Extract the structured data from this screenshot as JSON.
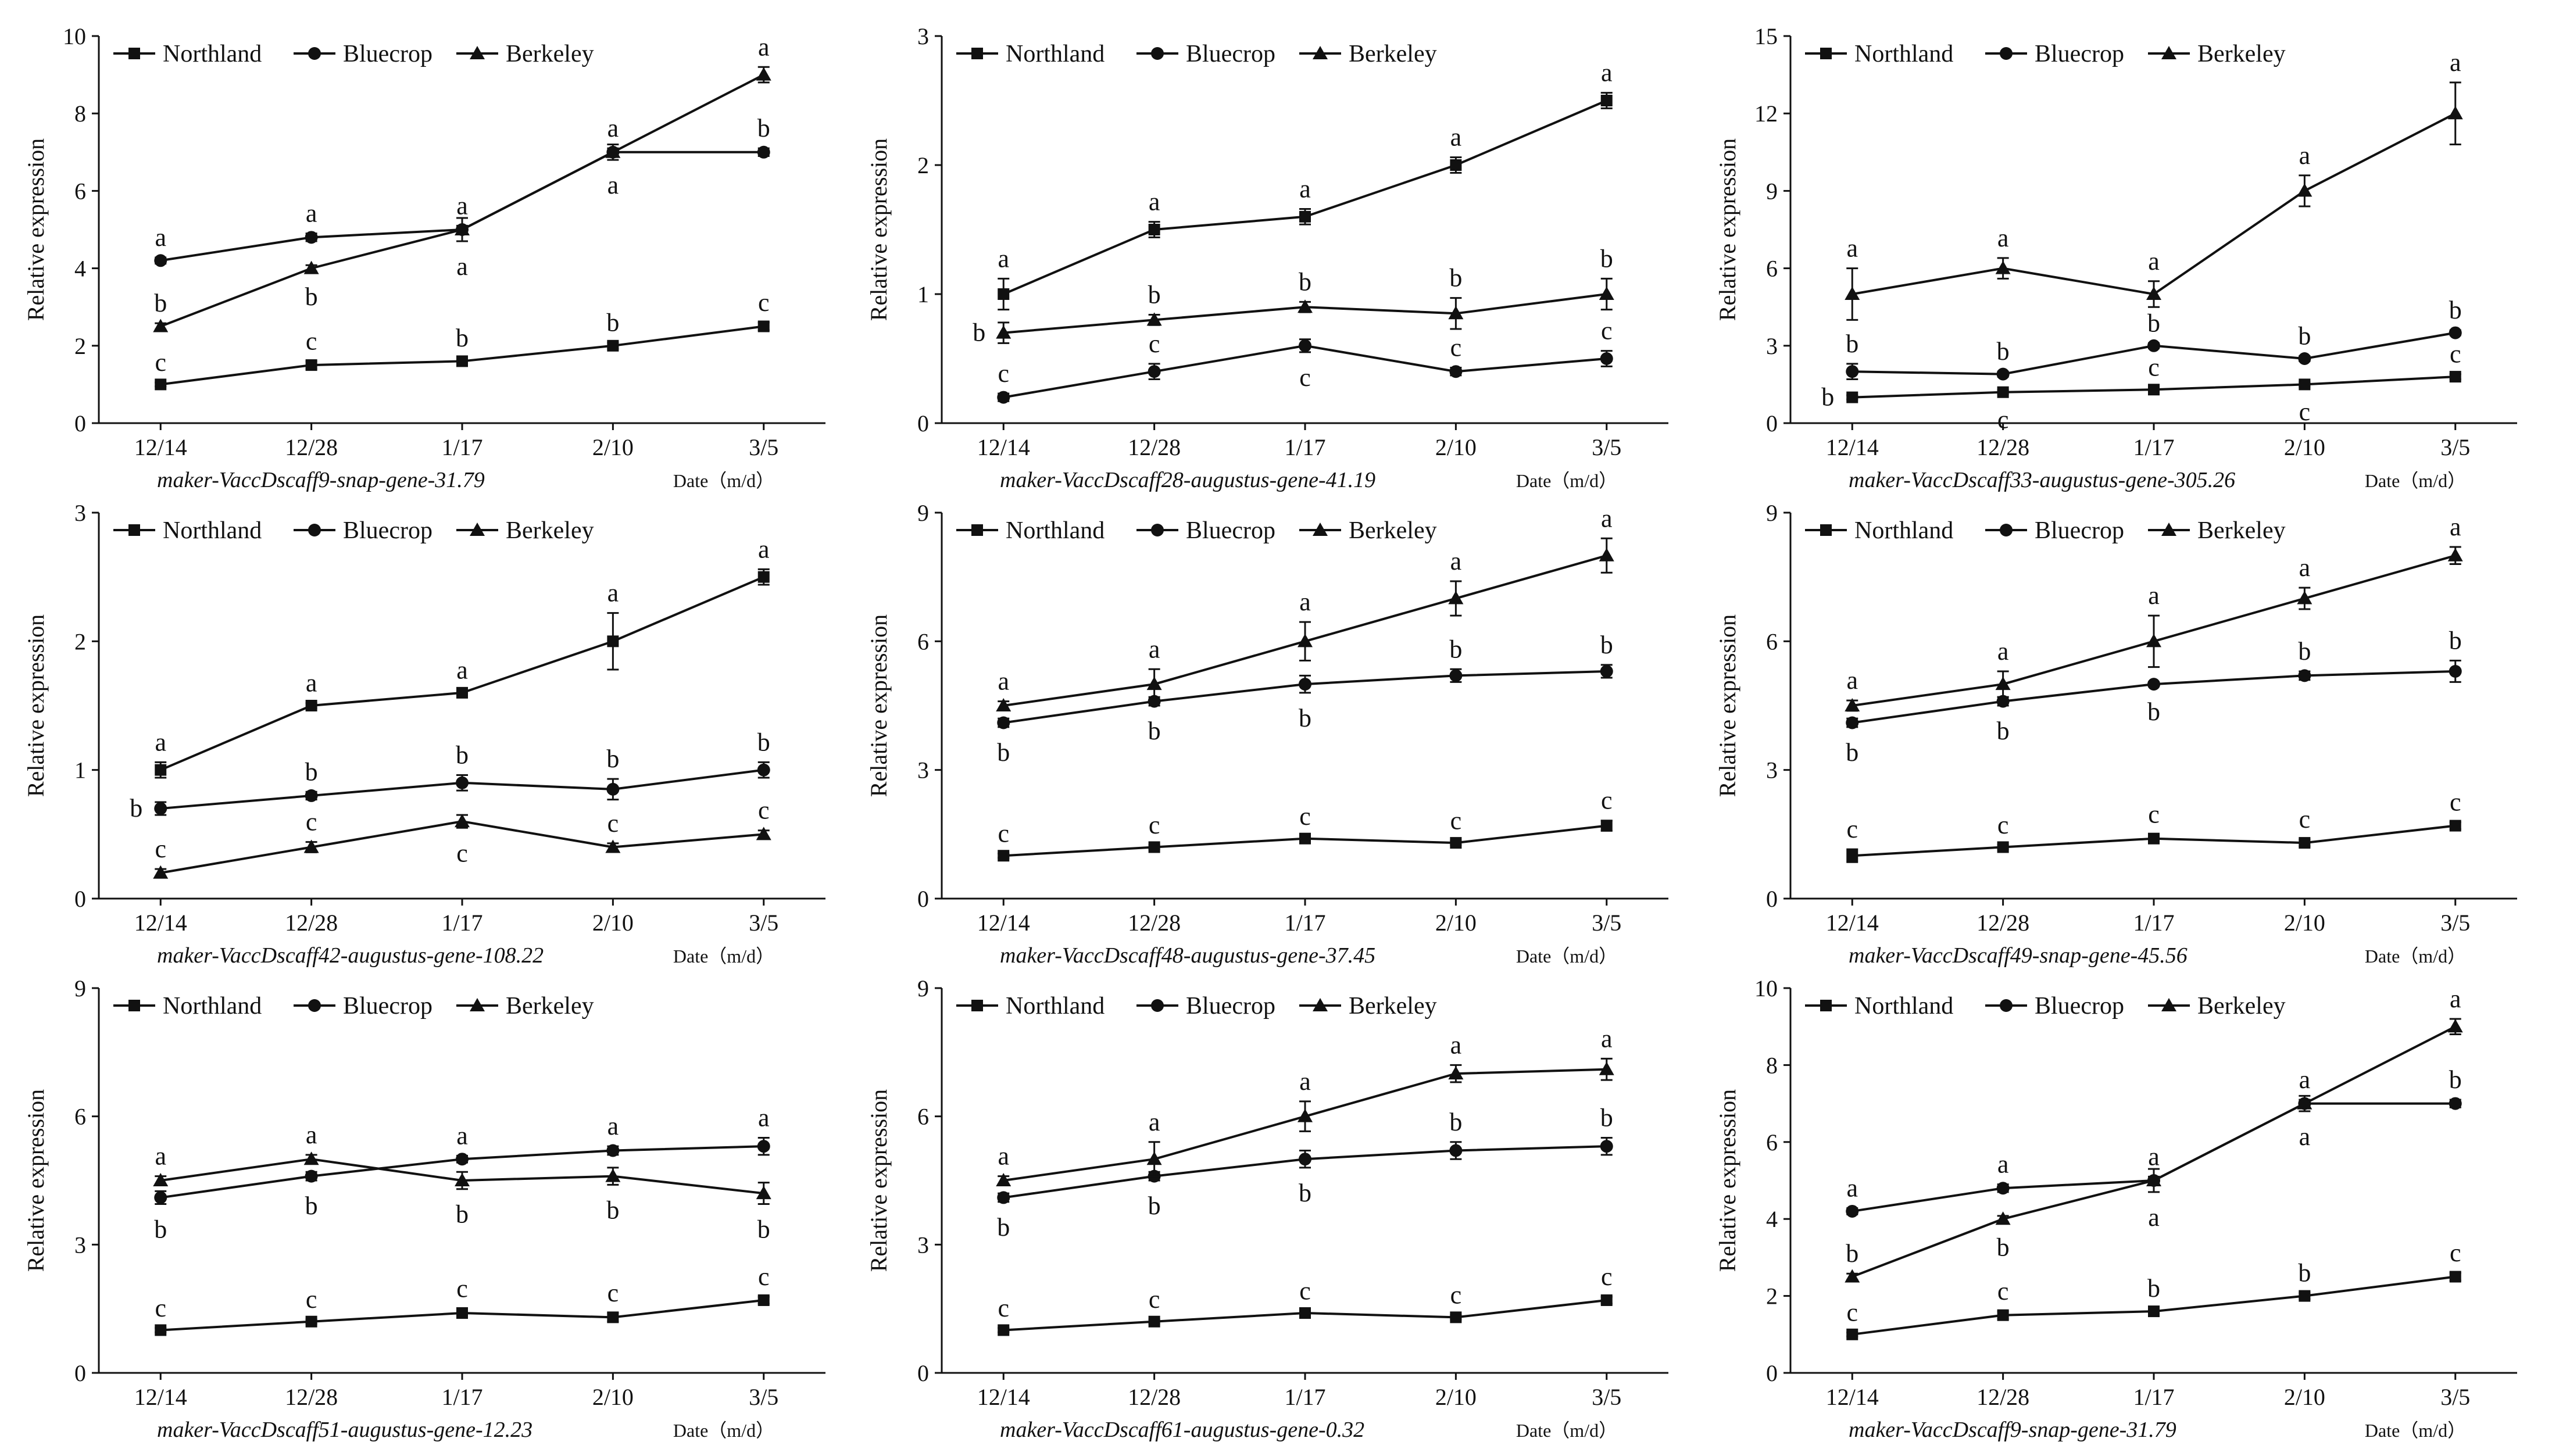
{
  "shared": {
    "categories": [
      "12/14",
      "12/28",
      "1/17",
      "2/10",
      "3/5"
    ],
    "ylabel": "Relative expression",
    "xlabel": "Date（m/d）",
    "legend": [
      "Northland",
      "Bluecrop",
      "Berkeley"
    ],
    "markers": {
      "Northland": "square",
      "Bluecrop": "circle",
      "Berkeley": "triangle"
    }
  },
  "chart_data": [
    {
      "type": "line",
      "title": "maker-VaccDscaff9-snap-gene-31.79",
      "ylim": [
        0,
        10
      ],
      "yticks": [
        0,
        2,
        4,
        6,
        8,
        10
      ],
      "series": [
        {
          "name": "Northland",
          "values": [
            1.0,
            1.5,
            1.6,
            2.0,
            2.5
          ],
          "err": [
            0.05,
            0.1,
            0.08,
            0.08,
            0.1
          ],
          "sig": [
            "c",
            "c",
            "b",
            "b",
            "c"
          ],
          "sigpos": [
            "above",
            "above",
            "above",
            "above",
            "above"
          ]
        },
        {
          "name": "Bluecrop",
          "values": [
            4.2,
            4.8,
            5.0,
            7.0,
            7.0
          ],
          "err": [
            0.08,
            0.1,
            0.1,
            0.1,
            0.1
          ],
          "sig": [
            "a",
            "a",
            "a",
            "a",
            "b"
          ],
          "sigpos": [
            "above",
            "above",
            "above",
            "above",
            "above"
          ]
        },
        {
          "name": "Berkeley",
          "values": [
            2.5,
            4.0,
            5.0,
            7.0,
            9.0
          ],
          "err": [
            0.08,
            0.08,
            0.3,
            0.2,
            0.2
          ],
          "sig": [
            "b",
            "b",
            "a",
            "a",
            "a"
          ],
          "sigpos": [
            "above",
            "below",
            "below",
            "below",
            "above"
          ]
        }
      ]
    },
    {
      "type": "line",
      "title": "maker-VaccDscaff28-augustus-gene-41.19",
      "ylim": [
        0,
        3
      ],
      "yticks": [
        0,
        1,
        2,
        3
      ],
      "series": [
        {
          "name": "Northland",
          "values": [
            1.0,
            1.5,
            1.6,
            2.0,
            2.5
          ],
          "err": [
            0.12,
            0.06,
            0.06,
            0.06,
            0.06
          ],
          "sig": [
            "a",
            "a",
            "a",
            "a",
            "a"
          ],
          "sigpos": [
            "above",
            "above",
            "above",
            "above",
            "above"
          ]
        },
        {
          "name": "Bluecrop",
          "values": [
            0.2,
            0.4,
            0.6,
            0.4,
            0.5
          ],
          "err": [
            0.03,
            0.06,
            0.05,
            0.03,
            0.06
          ],
          "sig": [
            "c",
            "c",
            "c",
            "c",
            "c"
          ],
          "sigpos": [
            "above",
            "above",
            "below",
            "above",
            "above"
          ]
        },
        {
          "name": "Berkeley",
          "values": [
            0.7,
            0.8,
            0.9,
            0.85,
            1.0
          ],
          "err": [
            0.08,
            0.04,
            0.04,
            0.12,
            0.12
          ],
          "sig": [
            "b",
            "b",
            "b",
            "b",
            "b"
          ],
          "sigpos": [
            "left",
            "above",
            "above",
            "above",
            "above"
          ]
        }
      ]
    },
    {
      "type": "line",
      "title": "maker-VaccDscaff33-augustus-gene-305.26",
      "ylim": [
        0,
        15
      ],
      "yticks": [
        0,
        3,
        6,
        9,
        12,
        15
      ],
      "series": [
        {
          "name": "Northland",
          "values": [
            1.0,
            1.2,
            1.3,
            1.5,
            1.8
          ],
          "err": [
            0.08,
            0.08,
            0.08,
            0.08,
            0.1
          ],
          "sig": [
            "b",
            "c",
            "c",
            "c",
            "c"
          ],
          "sigpos": [
            "left",
            "below",
            "above",
            "below",
            "above"
          ]
        },
        {
          "name": "Bluecrop",
          "values": [
            2.0,
            1.9,
            3.0,
            2.5,
            3.5
          ],
          "err": [
            0.3,
            0.1,
            0.1,
            0.1,
            0.1
          ],
          "sig": [
            "b",
            "b",
            "b",
            "b",
            "b"
          ],
          "sigpos": [
            "above",
            "above",
            "above",
            "above",
            "above"
          ]
        },
        {
          "name": "Berkeley",
          "values": [
            5.0,
            6.0,
            5.0,
            9.0,
            12.0
          ],
          "err": [
            1.0,
            0.4,
            0.5,
            0.6,
            1.2
          ],
          "sig": [
            "a",
            "a",
            "a",
            "a",
            "a"
          ],
          "sigpos": [
            "above",
            "above",
            "above",
            "above",
            "above"
          ]
        }
      ]
    },
    {
      "type": "line",
      "title": "maker-VaccDscaff42-augustus-gene-108.22",
      "ylim": [
        0,
        3
      ],
      "yticks": [
        0,
        1,
        2,
        3
      ],
      "series": [
        {
          "name": "Northland",
          "values": [
            1.0,
            1.5,
            1.6,
            2.0,
            2.5
          ],
          "err": [
            0.06,
            0.02,
            0.02,
            0.22,
            0.06
          ],
          "sig": [
            "a",
            "a",
            "a",
            "a",
            "a"
          ],
          "sigpos": [
            "above",
            "above",
            "above",
            "above",
            "above"
          ]
        },
        {
          "name": "Bluecrop",
          "values": [
            0.7,
            0.8,
            0.9,
            0.85,
            1.0
          ],
          "err": [
            0.05,
            0.03,
            0.06,
            0.08,
            0.06
          ],
          "sig": [
            "b",
            "b",
            "b",
            "b",
            "b"
          ],
          "sigpos": [
            "left",
            "above",
            "above",
            "above",
            "above"
          ]
        },
        {
          "name": "Berkeley",
          "values": [
            0.2,
            0.4,
            0.6,
            0.4,
            0.5
          ],
          "err": [
            0.03,
            0.04,
            0.05,
            0.03,
            0.03
          ],
          "sig": [
            "c",
            "c",
            "c",
            "c",
            "c"
          ],
          "sigpos": [
            "above",
            "above",
            "below",
            "above",
            "above"
          ]
        }
      ]
    },
    {
      "type": "line",
      "title": "maker-VaccDscaff48-augustus-gene-37.45",
      "ylim": [
        0,
        9
      ],
      "yticks": [
        0,
        3,
        6,
        9
      ],
      "series": [
        {
          "name": "Northland",
          "values": [
            1.0,
            1.2,
            1.4,
            1.3,
            1.7
          ],
          "err": [
            0.05,
            0.05,
            0.05,
            0.05,
            0.12
          ],
          "sig": [
            "c",
            "c",
            "c",
            "c",
            "c"
          ],
          "sigpos": [
            "above",
            "above",
            "above",
            "above",
            "above"
          ]
        },
        {
          "name": "Bluecrop",
          "values": [
            4.1,
            4.6,
            5.0,
            5.2,
            5.3
          ],
          "err": [
            0.1,
            0.1,
            0.2,
            0.15,
            0.15
          ],
          "sig": [
            "b",
            "b",
            "b",
            "b",
            "b"
          ],
          "sigpos": [
            "below",
            "below",
            "below",
            "above",
            "above"
          ]
        },
        {
          "name": "Berkeley",
          "values": [
            4.5,
            5.0,
            6.0,
            7.0,
            8.0
          ],
          "err": [
            0.1,
            0.35,
            0.45,
            0.4,
            0.4
          ],
          "sig": [
            "a",
            "a",
            "a",
            "a",
            "a"
          ],
          "sigpos": [
            "above",
            "above",
            "above",
            "above",
            "above"
          ]
        }
      ]
    },
    {
      "type": "line",
      "title": "maker-VaccDscaff49-snap-gene-45.56",
      "ylim": [
        0,
        9
      ],
      "yticks": [
        0,
        3,
        6,
        9
      ],
      "series": [
        {
          "name": "Northland",
          "values": [
            1.0,
            1.2,
            1.4,
            1.3,
            1.7
          ],
          "err": [
            0.15,
            0.05,
            0.1,
            0.08,
            0.08
          ],
          "sig": [
            "c",
            "c",
            "c",
            "c",
            "c"
          ],
          "sigpos": [
            "above",
            "above",
            "above",
            "above",
            "above"
          ]
        },
        {
          "name": "Bluecrop",
          "values": [
            4.1,
            4.6,
            5.0,
            5.2,
            5.3
          ],
          "err": [
            0.1,
            0.1,
            0.05,
            0.1,
            0.25
          ],
          "sig": [
            "b",
            "b",
            "b",
            "b",
            "b"
          ],
          "sigpos": [
            "below",
            "below",
            "below",
            "above",
            "above"
          ]
        },
        {
          "name": "Berkeley",
          "values": [
            4.5,
            5.0,
            6.0,
            7.0,
            8.0
          ],
          "err": [
            0.12,
            0.3,
            0.6,
            0.25,
            0.2
          ],
          "sig": [
            "a",
            "a",
            "a",
            "a",
            "a"
          ],
          "sigpos": [
            "above",
            "above",
            "above",
            "above",
            "above"
          ]
        }
      ]
    },
    {
      "type": "line",
      "title": "maker-VaccDscaff51-augustus-gene-12.23",
      "ylim": [
        0,
        9
      ],
      "yticks": [
        0,
        3,
        6,
        9
      ],
      "series": [
        {
          "name": "Northland",
          "values": [
            1.0,
            1.2,
            1.4,
            1.3,
            1.7
          ],
          "err": [
            0.05,
            0.05,
            0.1,
            0.1,
            0.08
          ],
          "sig": [
            "c",
            "c",
            "c",
            "c",
            "c"
          ],
          "sigpos": [
            "above",
            "above",
            "above",
            "above",
            "above"
          ]
        },
        {
          "name": "Bluecrop",
          "values": [
            4.1,
            4.6,
            5.0,
            5.2,
            5.3
          ],
          "err": [
            0.15,
            0.1,
            0.08,
            0.1,
            0.2
          ],
          "sig": [
            "b",
            "b",
            "a",
            "a",
            "a"
          ],
          "sigpos": [
            "below",
            "below",
            "above",
            "above",
            "above"
          ]
        },
        {
          "name": "Berkeley",
          "values": [
            4.5,
            5.0,
            4.5,
            4.6,
            4.2
          ],
          "err": [
            0.1,
            0.1,
            0.2,
            0.2,
            0.25
          ],
          "sig": [
            "a",
            "a",
            "b",
            "b",
            "b"
          ],
          "sigpos": [
            "above",
            "above",
            "below",
            "below",
            "below"
          ]
        }
      ]
    },
    {
      "type": "line",
      "title": "maker-VaccDscaff61-augustus-gene-0.32",
      "ylim": [
        0,
        9
      ],
      "yticks": [
        0,
        3,
        6,
        9
      ],
      "series": [
        {
          "name": "Northland",
          "values": [
            1.0,
            1.2,
            1.4,
            1.3,
            1.7
          ],
          "err": [
            0.05,
            0.05,
            0.05,
            0.05,
            0.08
          ],
          "sig": [
            "c",
            "c",
            "c",
            "c",
            "c"
          ],
          "sigpos": [
            "above",
            "above",
            "above",
            "above",
            "above"
          ]
        },
        {
          "name": "Bluecrop",
          "values": [
            4.1,
            4.6,
            5.0,
            5.2,
            5.3
          ],
          "err": [
            0.1,
            0.1,
            0.2,
            0.2,
            0.2
          ],
          "sig": [
            "b",
            "b",
            "b",
            "b",
            "b"
          ],
          "sigpos": [
            "below",
            "below",
            "below",
            "above",
            "above"
          ]
        },
        {
          "name": "Berkeley",
          "values": [
            4.5,
            5.0,
            6.0,
            7.0,
            7.1
          ],
          "err": [
            0.1,
            0.4,
            0.35,
            0.2,
            0.25
          ],
          "sig": [
            "a",
            "a",
            "a",
            "a",
            "a"
          ],
          "sigpos": [
            "above",
            "above",
            "above",
            "above",
            "above"
          ]
        }
      ]
    },
    {
      "type": "line",
      "title": "maker-VaccDscaff9-snap-gene-31.79",
      "ylim": [
        0,
        10
      ],
      "yticks": [
        0,
        2,
        4,
        6,
        8,
        10
      ],
      "series": [
        {
          "name": "Northland",
          "values": [
            1.0,
            1.5,
            1.6,
            2.0,
            2.5
          ],
          "err": [
            0.05,
            0.1,
            0.08,
            0.08,
            0.1
          ],
          "sig": [
            "c",
            "c",
            "b",
            "b",
            "c"
          ],
          "sigpos": [
            "above",
            "above",
            "above",
            "above",
            "above"
          ]
        },
        {
          "name": "Bluecrop",
          "values": [
            4.2,
            4.8,
            5.0,
            7.0,
            7.0
          ],
          "err": [
            0.08,
            0.1,
            0.1,
            0.1,
            0.1
          ],
          "sig": [
            "a",
            "a",
            "a",
            "a",
            "b"
          ],
          "sigpos": [
            "above",
            "above",
            "above",
            "above",
            "above"
          ]
        },
        {
          "name": "Berkeley",
          "values": [
            2.5,
            4.0,
            5.0,
            7.0,
            9.0
          ],
          "err": [
            0.08,
            0.08,
            0.3,
            0.2,
            0.2
          ],
          "sig": [
            "b",
            "b",
            "a",
            "a",
            "a"
          ],
          "sigpos": [
            "above",
            "below",
            "below",
            "below",
            "above"
          ]
        }
      ]
    }
  ]
}
